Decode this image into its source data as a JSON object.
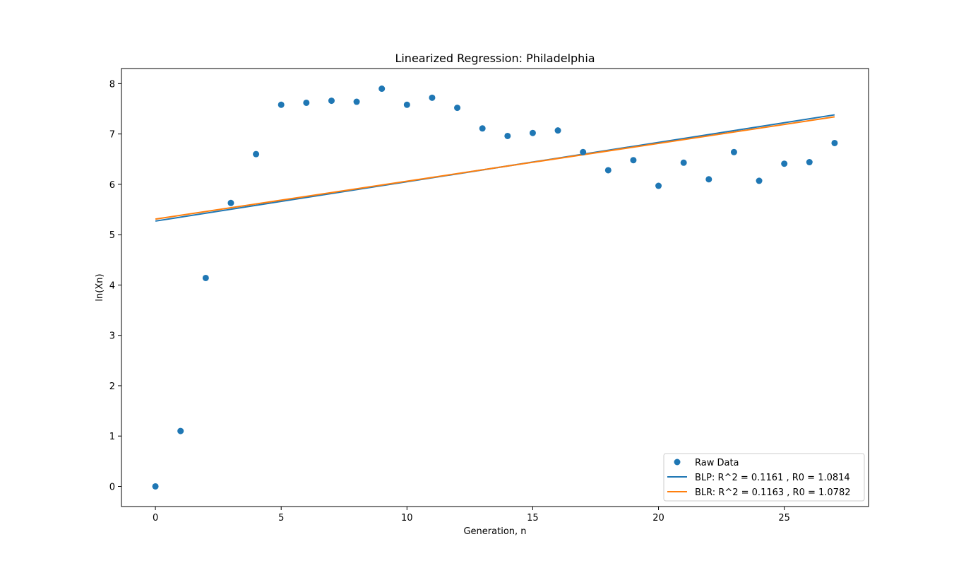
{
  "chart_data": {
    "type": "scatter",
    "title": "Linearized Regression: Philadelphia",
    "xlabel": "Generation, n",
    "ylabel": "ln(Xn)",
    "xlim": [
      -1.35,
      28.35
    ],
    "ylim": [
      -0.4,
      8.3
    ],
    "xticks": [
      0,
      5,
      10,
      15,
      20,
      25
    ],
    "yticks": [
      0,
      1,
      2,
      3,
      4,
      5,
      6,
      7,
      8
    ],
    "grid": false,
    "legend_position": "lower-right",
    "scatter": {
      "name": "Raw Data",
      "color": "#1f77b4",
      "x": [
        0,
        1,
        2,
        3,
        4,
        5,
        6,
        7,
        8,
        9,
        10,
        11,
        12,
        13,
        14,
        15,
        16,
        17,
        18,
        19,
        20,
        21,
        22,
        23,
        24,
        25,
        26,
        27
      ],
      "y": [
        0.0,
        1.1,
        4.14,
        5.63,
        6.6,
        7.58,
        7.62,
        7.66,
        7.64,
        7.9,
        7.58,
        7.72,
        7.52,
        7.11,
        6.96,
        7.02,
        7.07,
        6.64,
        6.28,
        6.48,
        5.97,
        6.43,
        6.1,
        6.64,
        6.07,
        6.41,
        6.44,
        6.82
      ]
    },
    "lines": [
      {
        "name": "BLP: R^2 = 0.1161 , R0 = 1.0814",
        "color": "#1f77b4",
        "x": [
          0,
          27
        ],
        "y": [
          5.27,
          7.38
        ]
      },
      {
        "name": "BLR: R^2 = 0.1163 , R0 = 1.0782",
        "color": "#ff7f0e",
        "x": [
          0,
          27
        ],
        "y": [
          5.31,
          7.34
        ]
      }
    ]
  }
}
